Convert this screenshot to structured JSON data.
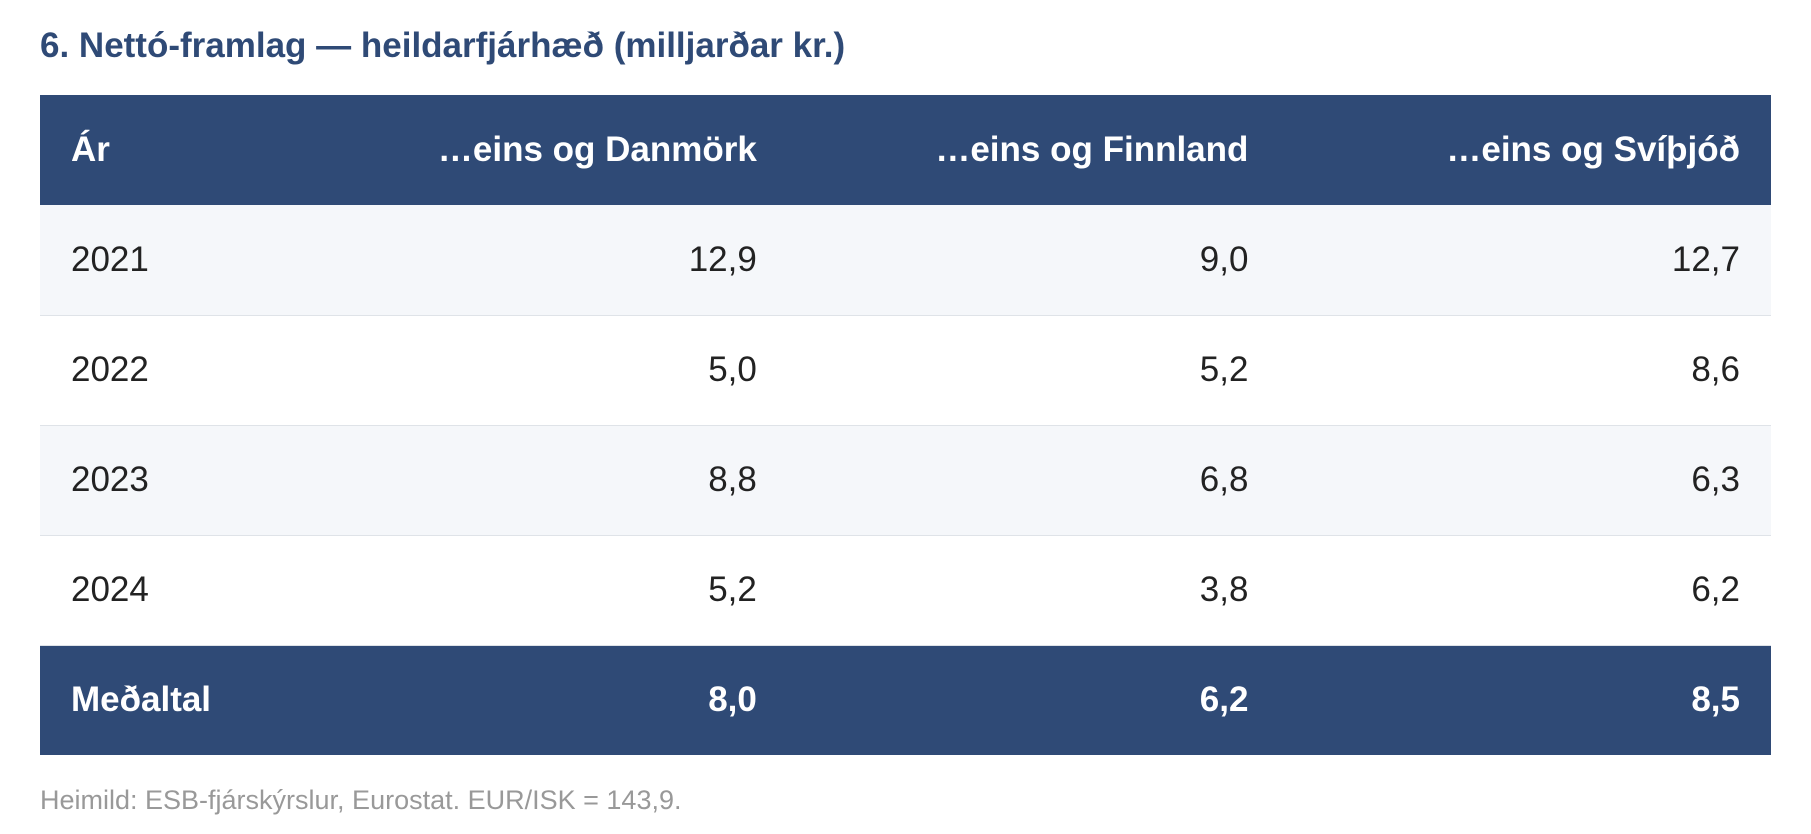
{
  "title": "6. Nettó-framlag — heildarfjárhæð (milljarðar kr.)",
  "table": {
    "headers": [
      "Ár",
      "…eins og Danmörk",
      "…eins og Finnland",
      "…eins og Svíþjóð"
    ],
    "rows": [
      [
        "2021",
        "12,9",
        "9,0",
        "12,7"
      ],
      [
        "2022",
        "5,0",
        "5,2",
        "8,6"
      ],
      [
        "2023",
        "8,8",
        "6,8",
        "6,3"
      ],
      [
        "2024",
        "5,2",
        "3,8",
        "6,2"
      ]
    ],
    "footer": [
      "Meðaltal",
      "8,0",
      "6,2",
      "8,5"
    ]
  },
  "footnote": "Heimild: ESB-fjárskýrslur, Eurostat. EUR/ISK = 143,9.",
  "colors": {
    "accent": "#2f4a76",
    "row_alt": "#f5f7fa",
    "footnote": "#999999"
  }
}
